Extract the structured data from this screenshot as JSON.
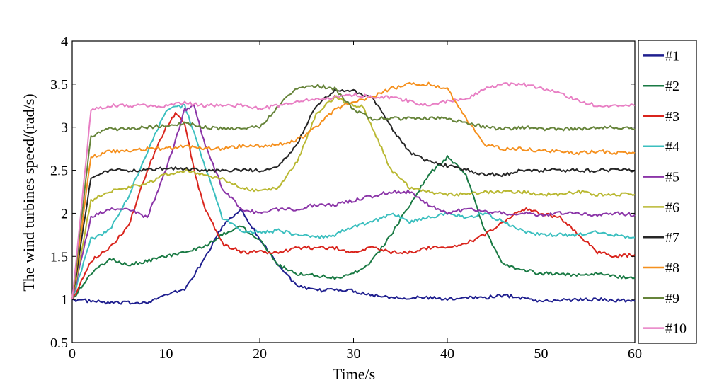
{
  "chart_data": {
    "type": "line",
    "xlabel": "Time/s",
    "ylabel": "The wind turbines speed/(rad/s)",
    "xlim": [
      0,
      60
    ],
    "ylim": [
      0.5,
      4
    ],
    "xticks": [
      "0",
      "10",
      "20",
      "30",
      "40",
      "50",
      "60"
    ],
    "yticks": [
      "0.5",
      "1",
      "1.5",
      "2",
      "2.5",
      "3",
      "3.5",
      "4"
    ],
    "legend_position": "right",
    "grid": false,
    "series": [
      {
        "name": "#1",
        "color": "#1f1f8f",
        "x": [
          0,
          2,
          4,
          6,
          8,
          10,
          12,
          14,
          16,
          18,
          20,
          22,
          24,
          26,
          28,
          30,
          32,
          34,
          36,
          38,
          40,
          42,
          44,
          46,
          48,
          50,
          52,
          54,
          56,
          58,
          60
        ],
        "values": [
          1.0,
          0.98,
          0.96,
          0.96,
          0.97,
          1.05,
          1.12,
          1.45,
          1.85,
          2.05,
          1.7,
          1.4,
          1.15,
          1.1,
          1.12,
          1.1,
          1.05,
          1.03,
          1.02,
          1.02,
          1.0,
          1.03,
          1.02,
          1.05,
          1.02,
          0.98,
          0.99,
          1.0,
          1.0,
          0.99,
          0.98
        ]
      },
      {
        "name": "#2",
        "color": "#1a7a44",
        "x": [
          0,
          2,
          4,
          6,
          8,
          10,
          12,
          14,
          16,
          18,
          20,
          22,
          24,
          26,
          28,
          30,
          32,
          34,
          36,
          38,
          40,
          42,
          44,
          46,
          48,
          50,
          52,
          54,
          56,
          58,
          60
        ],
        "values": [
          1.0,
          1.3,
          1.47,
          1.4,
          1.45,
          1.5,
          1.55,
          1.6,
          1.75,
          1.85,
          1.7,
          1.4,
          1.3,
          1.28,
          1.25,
          1.3,
          1.45,
          1.75,
          2.1,
          2.45,
          2.65,
          2.45,
          1.8,
          1.4,
          1.35,
          1.3,
          1.3,
          1.28,
          1.3,
          1.27,
          1.25
        ]
      },
      {
        "name": "#3",
        "color": "#d9241c",
        "x": [
          0,
          2,
          4,
          6,
          8,
          10,
          11,
          12,
          13,
          14,
          16,
          18,
          20,
          22,
          24,
          26,
          28,
          30,
          32,
          34,
          36,
          38,
          40,
          42,
          44,
          46,
          48,
          50,
          52,
          54,
          56,
          58,
          60
        ],
        "values": [
          1.0,
          1.45,
          1.6,
          1.85,
          2.5,
          3.0,
          3.15,
          3.05,
          2.5,
          2.1,
          1.65,
          1.55,
          1.55,
          1.55,
          1.6,
          1.6,
          1.6,
          1.55,
          1.6,
          1.55,
          1.55,
          1.6,
          1.6,
          1.65,
          1.75,
          1.9,
          2.05,
          2.0,
          1.95,
          1.75,
          1.55,
          1.5,
          1.52
        ]
      },
      {
        "name": "#4",
        "color": "#3bbfbf",
        "x": [
          0,
          2,
          4,
          6,
          8,
          10,
          12,
          14,
          16,
          18,
          20,
          22,
          24,
          26,
          28,
          30,
          32,
          34,
          36,
          38,
          40,
          42,
          44,
          46,
          48,
          50,
          52,
          54,
          56,
          58,
          60
        ],
        "values": [
          1.0,
          1.7,
          1.8,
          2.2,
          2.7,
          3.2,
          3.25,
          2.6,
          1.95,
          1.8,
          1.78,
          1.8,
          1.75,
          1.72,
          1.75,
          1.85,
          1.9,
          2.0,
          1.9,
          1.95,
          2.0,
          1.95,
          2.0,
          1.9,
          1.8,
          1.75,
          1.75,
          1.75,
          1.78,
          1.75,
          1.72
        ]
      },
      {
        "name": "#5",
        "color": "#8b35a8",
        "x": [
          0,
          2,
          4,
          6,
          8,
          10,
          12,
          13,
          14,
          16,
          18,
          20,
          22,
          24,
          26,
          28,
          30,
          32,
          34,
          36,
          38,
          40,
          42,
          44,
          46,
          48,
          50,
          52,
          54,
          56,
          58,
          60
        ],
        "values": [
          1.0,
          1.95,
          2.05,
          2.05,
          1.95,
          2.5,
          3.2,
          3.25,
          2.85,
          2.3,
          2.05,
          2.0,
          2.05,
          2.05,
          2.1,
          2.1,
          2.15,
          2.2,
          2.25,
          2.25,
          2.1,
          2.0,
          2.05,
          2.02,
          2.0,
          2.0,
          1.98,
          2.0,
          2.0,
          1.98,
          2.0,
          1.98
        ]
      },
      {
        "name": "#6",
        "color": "#b9b832",
        "x": [
          0,
          2,
          4,
          6,
          8,
          10,
          12,
          14,
          16,
          18,
          20,
          22,
          24,
          26,
          28,
          30,
          31,
          32,
          34,
          36,
          38,
          40,
          42,
          44,
          46,
          48,
          50,
          52,
          54,
          56,
          58,
          60
        ],
        "values": [
          1.0,
          2.15,
          2.25,
          2.3,
          2.35,
          2.45,
          2.5,
          2.45,
          2.4,
          2.3,
          2.25,
          2.3,
          2.6,
          3.15,
          3.35,
          3.25,
          3.25,
          3.0,
          2.5,
          2.3,
          2.25,
          2.22,
          2.22,
          2.25,
          2.25,
          2.25,
          2.22,
          2.22,
          2.25,
          2.22,
          2.22,
          2.22
        ]
      },
      {
        "name": "#7",
        "color": "#262626",
        "x": [
          0,
          2,
          4,
          6,
          8,
          10,
          12,
          14,
          16,
          18,
          20,
          22,
          24,
          26,
          28,
          30,
          32,
          34,
          36,
          38,
          40,
          42,
          44,
          46,
          48,
          50,
          52,
          54,
          56,
          58,
          60
        ],
        "values": [
          1.0,
          2.4,
          2.5,
          2.5,
          2.5,
          2.52,
          2.52,
          2.5,
          2.5,
          2.5,
          2.5,
          2.55,
          2.8,
          3.25,
          3.42,
          3.42,
          3.35,
          3.0,
          2.7,
          2.6,
          2.55,
          2.5,
          2.45,
          2.45,
          2.5,
          2.5,
          2.5,
          2.5,
          2.5,
          2.5,
          2.5
        ]
      },
      {
        "name": "#8",
        "color": "#f5901e",
        "x": [
          0,
          2,
          4,
          6,
          8,
          10,
          12,
          14,
          16,
          18,
          20,
          22,
          24,
          26,
          28,
          30,
          32,
          34,
          36,
          38,
          40,
          42,
          44,
          46,
          48,
          50,
          52,
          54,
          56,
          58,
          60
        ],
        "values": [
          1.0,
          2.65,
          2.72,
          2.72,
          2.75,
          2.75,
          2.78,
          2.75,
          2.75,
          2.78,
          2.78,
          2.8,
          2.85,
          3.0,
          3.2,
          3.3,
          3.35,
          3.45,
          3.5,
          3.5,
          3.45,
          3.1,
          2.8,
          2.75,
          2.75,
          2.72,
          2.72,
          2.7,
          2.72,
          2.7,
          2.7
        ]
      },
      {
        "name": "#9",
        "color": "#66843a",
        "x": [
          0,
          2,
          4,
          6,
          8,
          10,
          12,
          14,
          16,
          18,
          20,
          22,
          24,
          26,
          28,
          30,
          32,
          34,
          36,
          38,
          40,
          42,
          44,
          46,
          48,
          50,
          52,
          54,
          56,
          58,
          60
        ],
        "values": [
          1.0,
          2.9,
          2.98,
          2.98,
          3.0,
          3.02,
          3.05,
          3.0,
          2.98,
          3.0,
          3.0,
          3.25,
          3.45,
          3.48,
          3.45,
          3.2,
          3.1,
          3.1,
          3.1,
          3.1,
          3.1,
          3.05,
          3.0,
          2.98,
          3.0,
          2.98,
          2.98,
          2.98,
          3.0,
          3.0,
          2.98
        ]
      },
      {
        "name": "#10",
        "color": "#e87fc4",
        "x": [
          0,
          2,
          4,
          6,
          8,
          10,
          12,
          14,
          16,
          18,
          20,
          22,
          24,
          26,
          28,
          30,
          32,
          34,
          36,
          38,
          40,
          42,
          44,
          46,
          48,
          50,
          52,
          54,
          56,
          58,
          60
        ],
        "values": [
          1.0,
          3.2,
          3.25,
          3.25,
          3.25,
          3.25,
          3.28,
          3.25,
          3.25,
          3.25,
          3.22,
          3.25,
          3.3,
          3.32,
          3.35,
          3.38,
          3.35,
          3.35,
          3.3,
          3.25,
          3.3,
          3.32,
          3.45,
          3.5,
          3.5,
          3.45,
          3.4,
          3.3,
          3.25,
          3.25,
          3.25
        ]
      }
    ]
  }
}
